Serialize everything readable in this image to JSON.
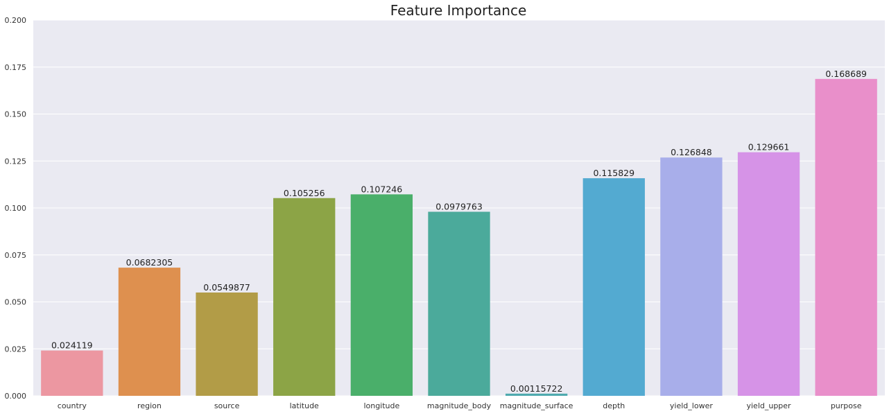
{
  "chart_data": {
    "type": "bar",
    "title": "Feature Importance",
    "xlabel": "",
    "ylabel": "",
    "ylim": [
      0,
      0.2
    ],
    "yticks": [
      0.0,
      0.025,
      0.05,
      0.075,
      0.1,
      0.125,
      0.15,
      0.175,
      0.2
    ],
    "ytick_labels": [
      "0.000",
      "0.025",
      "0.050",
      "0.075",
      "0.100",
      "0.125",
      "0.150",
      "0.175",
      "0.200"
    ],
    "grid": true,
    "legend": "none",
    "categories": [
      "country",
      "region",
      "source",
      "latitude",
      "longitude",
      "magnitude_body",
      "magnitude_surface",
      "depth",
      "yield_lower",
      "yield_upper",
      "purpose"
    ],
    "values": [
      0.024119,
      0.0682305,
      0.0549877,
      0.105256,
      0.107246,
      0.0979763,
      0.00115722,
      0.115829,
      0.126848,
      0.129661,
      0.168689
    ],
    "data_labels": [
      "0.024119",
      "0.0682305",
      "0.0549877",
      "0.105256",
      "0.107246",
      "0.0979763",
      "0.00115722",
      "0.115829",
      "0.126848",
      "0.129661",
      "0.168689"
    ],
    "colors": [
      "#ec97a1",
      "#de904f",
      "#b29c47",
      "#8ca446",
      "#4aaf6a",
      "#4baa9b",
      "#4eaaae",
      "#53aad1",
      "#a8aeea",
      "#d693e7",
      "#e98fca"
    ],
    "plot_background": "#eaeaf2",
    "grid_color": "#ffffff"
  }
}
